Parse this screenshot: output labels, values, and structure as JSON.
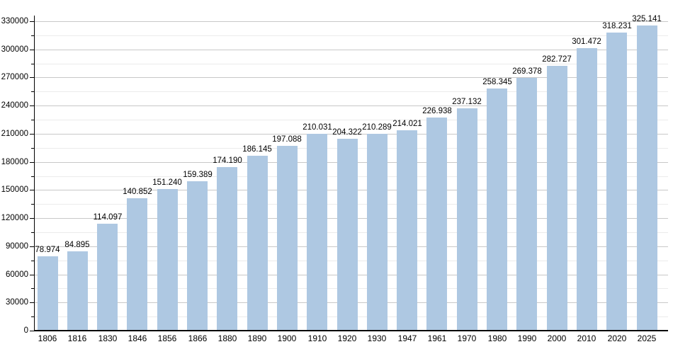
{
  "chart_data": {
    "type": "bar",
    "title": "",
    "xlabel": "",
    "ylabel": "",
    "categories": [
      "1806",
      "1816",
      "1830",
      "1846",
      "1856",
      "1866",
      "1880",
      "1890",
      "1900",
      "1910",
      "1920",
      "1930",
      "1947",
      "1961",
      "1970",
      "1980",
      "1990",
      "2000",
      "2010",
      "2020",
      "2025"
    ],
    "values": [
      78974,
      84895,
      114097,
      140852,
      151240,
      159389,
      174190,
      186145,
      197088,
      210031,
      204322,
      210289,
      214021,
      226938,
      237132,
      258345,
      269378,
      282727,
      301472,
      318231,
      325141
    ],
    "value_labels": [
      "78.974",
      "84.895",
      "114.097",
      "140.852",
      "151.240",
      "159.389",
      "174.190",
      "186.145",
      "197.088",
      "210.031",
      "204.322",
      "210.289",
      "214.021",
      "226.938",
      "237.132",
      "258.345",
      "269.378",
      "282.727",
      "301.472",
      "318.231",
      "325.141"
    ],
    "ylim": [
      0,
      330000
    ],
    "y_major_step": 30000,
    "y_minor_step": 15000,
    "y_tick_labels": [
      "0",
      "30000",
      "60000",
      "90000",
      "120000",
      "150000",
      "180000",
      "210000",
      "240000",
      "270000",
      "300000",
      "330000"
    ],
    "grid": true,
    "legend": "none",
    "colors": {
      "bar_fill": "#aec8e2",
      "major_grid": "#c8c8c8",
      "minor_grid": "#ebebeb",
      "axis": "#000000",
      "text": "#000000",
      "background": "#ffffff"
    }
  }
}
